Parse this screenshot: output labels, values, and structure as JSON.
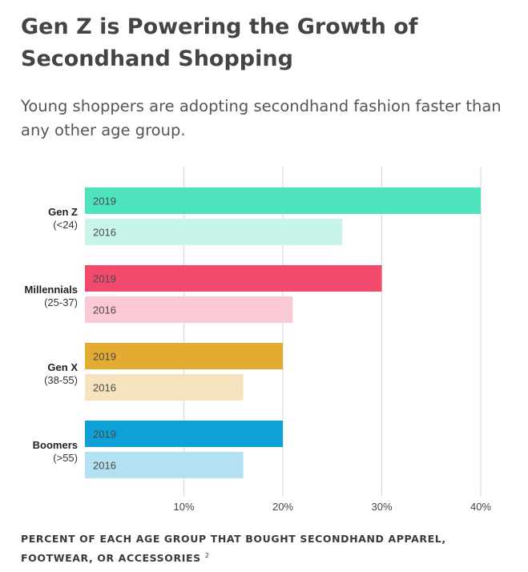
{
  "title": "Gen Z is Powering the Growth of Secondhand Shopping",
  "subtitle": "Young shoppers are adopting secondhand fashion faster than any other age group.",
  "footnote": "PERCENT OF EACH AGE GROUP THAT BOUGHT SECONDHAND APPAREL, FOOTWEAR, OR ACCESSORIES",
  "footnote_ref": "2",
  "chart_data": {
    "type": "bar",
    "orientation": "horizontal",
    "categories": [
      {
        "name": "Gen Z",
        "range": "(<24)"
      },
      {
        "name": "Millennials",
        "range": "(25-37)"
      },
      {
        "name": "Gen X",
        "range": "(38-55)"
      },
      {
        "name": "Boomers",
        "range": "(>55)"
      }
    ],
    "series": [
      {
        "name": "2019",
        "values": [
          40,
          30,
          20,
          20
        ],
        "colors": [
          "#4de3bf",
          "#f24a6c",
          "#e3ab31",
          "#0da1d8"
        ]
      },
      {
        "name": "2016",
        "values": [
          26,
          21,
          16,
          16
        ],
        "colors": [
          "#c7f5ea",
          "#fbc9d4",
          "#f6e2bd",
          "#b4e1f2"
        ]
      }
    ],
    "xlim": [
      0,
      40
    ],
    "xticks": [
      10,
      20,
      30,
      40
    ],
    "tick_suffix": "%",
    "grid": true
  }
}
